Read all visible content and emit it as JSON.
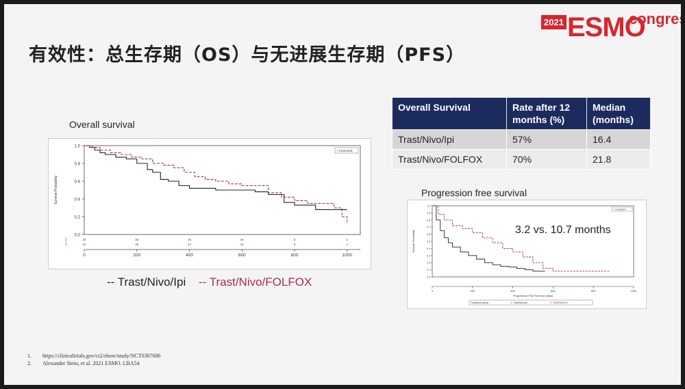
{
  "slide": {
    "title": "有效性：总生存期（OS）与无进展生存期（PFS）",
    "logo": {
      "year": "2021",
      "name": "ESMO",
      "suffix": "congress"
    },
    "colors": {
      "navy": "#1c2b5e",
      "esmo_red": "#d7262e",
      "series1": "#222222",
      "series2": "#a0304a"
    }
  },
  "os_table": {
    "headers": [
      "Overall Survival",
      "Rate after 12 months (%)",
      "Median (months)"
    ],
    "rows": [
      [
        "Trast/Nivo/Ipi",
        "57%",
        "16.4"
      ],
      [
        "Trast/Nivo/FOLFOX",
        "70%",
        "21.8"
      ]
    ]
  },
  "chart_data": [
    {
      "type": "line",
      "title": "Overall survival",
      "xlabel": "",
      "ylabel": "Survival Probability",
      "xlim": [
        0,
        1050
      ],
      "ylim": [
        0,
        1.0
      ],
      "xticks": [
        0,
        200,
        400,
        600,
        800,
        1000
      ],
      "yticks": [
        0.0,
        0.2,
        0.4,
        0.6,
        0.8,
        1.0
      ],
      "legend_inset": "+ Censored",
      "legend_labels": [
        "-- Trast/Nivo/Ipi",
        "-- Trast/Nivo/FOLFOX"
      ],
      "risk_rows": [
        {
          "row": "1",
          "counts": [
            "44",
            "33",
            "15",
            "16",
            "3",
            "1"
          ]
        },
        {
          "row": "2",
          "counts": [
            "44",
            "36",
            "24",
            "12",
            "6",
            "1"
          ]
        }
      ],
      "series": [
        {
          "style": "solid",
          "color": "#222222",
          "x": [
            0,
            20,
            40,
            60,
            80,
            120,
            160,
            200,
            240,
            260,
            290,
            320,
            360,
            400,
            450,
            500,
            550,
            600,
            650,
            700,
            760,
            800,
            880,
            950,
            1000
          ],
          "y": [
            1.0,
            0.98,
            0.95,
            0.92,
            0.9,
            0.87,
            0.85,
            0.8,
            0.73,
            0.7,
            0.62,
            0.6,
            0.55,
            0.52,
            0.52,
            0.5,
            0.5,
            0.5,
            0.48,
            0.45,
            0.36,
            0.33,
            0.28,
            0.28,
            0.28
          ]
        },
        {
          "style": "dashed",
          "color": "#a0304a",
          "x": [
            0,
            30,
            60,
            100,
            140,
            180,
            220,
            260,
            300,
            340,
            380,
            420,
            460,
            500,
            550,
            600,
            650,
            700,
            750,
            800,
            850,
            900,
            950,
            980,
            1000
          ],
          "y": [
            1.0,
            0.98,
            0.95,
            0.92,
            0.9,
            0.87,
            0.85,
            0.8,
            0.78,
            0.75,
            0.7,
            0.65,
            0.62,
            0.6,
            0.57,
            0.55,
            0.55,
            0.47,
            0.42,
            0.38,
            0.35,
            0.35,
            0.3,
            0.2,
            0.12
          ]
        }
      ]
    },
    {
      "type": "line",
      "title": "Progression free survival",
      "annotation": "3.2 vs. 10.7 months",
      "xlabel": "Progression Free Survival (days)",
      "ylabel": "Survival Probability",
      "xlim": [
        0,
        1000
      ],
      "ylim": [
        0,
        1.0
      ],
      "xticks": [
        0,
        200,
        400,
        600,
        800,
        1000
      ],
      "yticks": [
        0.0,
        0.1,
        0.2,
        0.3,
        0.4,
        0.5,
        0.6,
        0.7,
        0.8,
        0.9,
        1.0
      ],
      "legend_inset": "+ Censored",
      "treatment_legend": [
        "Treatment group",
        "1: Trast/Nivo/Ipi",
        "2: Trast/Nivo/Fol"
      ],
      "series": [
        {
          "style": "solid",
          "color": "#222222",
          "x": [
            0,
            20,
            40,
            60,
            80,
            100,
            140,
            180,
            220,
            260,
            300,
            340,
            380,
            420,
            460,
            500,
            560
          ],
          "y": [
            1.0,
            0.8,
            0.65,
            0.55,
            0.48,
            0.42,
            0.35,
            0.3,
            0.25,
            0.2,
            0.17,
            0.15,
            0.14,
            0.12,
            0.1,
            0.08,
            0.08
          ]
        },
        {
          "style": "dashed",
          "color": "#a0304a",
          "x": [
            0,
            30,
            60,
            100,
            150,
            200,
            250,
            300,
            350,
            400,
            450,
            500,
            550,
            600,
            700,
            780,
            880
          ],
          "y": [
            1.0,
            0.88,
            0.8,
            0.72,
            0.68,
            0.62,
            0.55,
            0.48,
            0.4,
            0.35,
            0.28,
            0.2,
            0.12,
            0.08,
            0.08,
            0.08,
            0.08
          ]
        }
      ]
    }
  ],
  "references": [
    {
      "num": "1.",
      "text": "https://clinicaltrials.gov/ct2/show/study/NCT0387686"
    },
    {
      "num": "2.",
      "text": "Alexander Stein, et al. 2021 ESMO. LBA54"
    }
  ]
}
